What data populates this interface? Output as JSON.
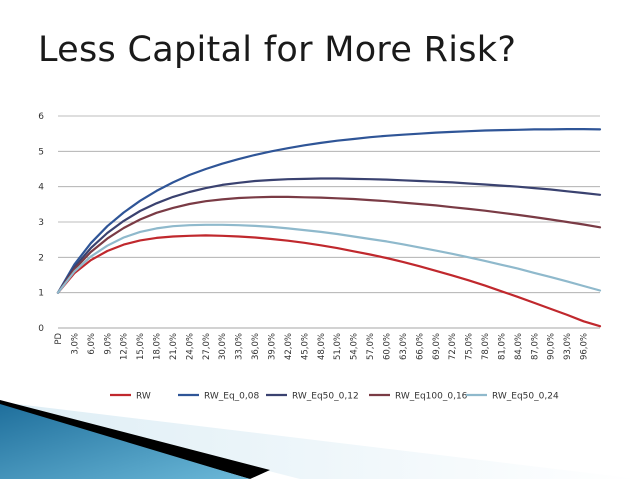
{
  "slide": {
    "title": "Less Capital for More Risk?"
  },
  "chart_data": {
    "type": "line",
    "title": "",
    "xlabel": "",
    "ylabel": "",
    "x_axis_first_label": "PD",
    "x": [
      0,
      3,
      6,
      9,
      12,
      15,
      18,
      21,
      24,
      27,
      30,
      33,
      36,
      39,
      42,
      45,
      48,
      51,
      54,
      57,
      60,
      63,
      66,
      69,
      72,
      75,
      78,
      81,
      84,
      87,
      90,
      93,
      96,
      99
    ],
    "x_tick_labels": [
      "PD",
      "3,0%",
      "6,0%",
      "9,0%",
      "12,0%",
      "15,0%",
      "18,0%",
      "21,0%",
      "24,0%",
      "27,0%",
      "30,0%",
      "33,0%",
      "36,0%",
      "39,0%",
      "42,0%",
      "45,0%",
      "48,0%",
      "51,0%",
      "54,0%",
      "57,0%",
      "60,0%",
      "63,0%",
      "66,0%",
      "69,0%",
      "72,0%",
      "75,0%",
      "78,0%",
      "81,0%",
      "84,0%",
      "87,0%",
      "90,0%",
      "93,0%",
      "96,0%"
    ],
    "ylim": [
      0,
      6
    ],
    "y_ticks": [
      "0",
      "1",
      "2",
      "3",
      "4",
      "5",
      "6"
    ],
    "grid": true,
    "legend_position": "bottom",
    "series": [
      {
        "name": "RW",
        "color": "#c0282d",
        "values": [
          1.0,
          1.55,
          1.92,
          2.18,
          2.36,
          2.48,
          2.55,
          2.59,
          2.61,
          2.62,
          2.61,
          2.59,
          2.56,
          2.52,
          2.47,
          2.41,
          2.34,
          2.26,
          2.17,
          2.08,
          1.98,
          1.87,
          1.75,
          1.62,
          1.49,
          1.35,
          1.2,
          1.04,
          0.88,
          0.71,
          0.54,
          0.37,
          0.19,
          0.05
        ]
      },
      {
        "name": "RW_Eq_0,08",
        "color": "#2f5597",
        "values": [
          1.0,
          1.8,
          2.4,
          2.88,
          3.27,
          3.6,
          3.88,
          4.12,
          4.33,
          4.5,
          4.65,
          4.78,
          4.9,
          5.0,
          5.09,
          5.17,
          5.24,
          5.3,
          5.35,
          5.4,
          5.44,
          5.47,
          5.5,
          5.53,
          5.55,
          5.57,
          5.59,
          5.6,
          5.61,
          5.62,
          5.62,
          5.63,
          5.63,
          5.62
        ]
      },
      {
        "name": "RW_Eq50_0,12",
        "color": "#3a4270",
        "values": [
          1.0,
          1.72,
          2.26,
          2.69,
          3.03,
          3.31,
          3.53,
          3.71,
          3.85,
          3.96,
          4.05,
          4.11,
          4.16,
          4.19,
          4.21,
          4.22,
          4.23,
          4.23,
          4.22,
          4.21,
          4.2,
          4.18,
          4.16,
          4.14,
          4.12,
          4.09,
          4.06,
          4.03,
          4.0,
          3.96,
          3.92,
          3.87,
          3.82,
          3.77
        ]
      },
      {
        "name": "RW_Eq100_0,16",
        "color": "#7a3b45",
        "values": [
          1.0,
          1.66,
          2.15,
          2.53,
          2.83,
          3.07,
          3.26,
          3.4,
          3.51,
          3.59,
          3.64,
          3.68,
          3.7,
          3.71,
          3.71,
          3.7,
          3.69,
          3.67,
          3.65,
          3.62,
          3.59,
          3.55,
          3.51,
          3.47,
          3.42,
          3.37,
          3.32,
          3.26,
          3.2,
          3.14,
          3.07,
          3.0,
          2.93,
          2.85
        ]
      },
      {
        "name": "RW_Eq50_0,24",
        "color": "#8fb9cc",
        "values": [
          1.0,
          1.6,
          2.02,
          2.33,
          2.56,
          2.72,
          2.82,
          2.88,
          2.91,
          2.92,
          2.92,
          2.91,
          2.89,
          2.86,
          2.82,
          2.77,
          2.72,
          2.66,
          2.59,
          2.52,
          2.45,
          2.37,
          2.28,
          2.19,
          2.1,
          2.0,
          1.9,
          1.79,
          1.68,
          1.56,
          1.44,
          1.32,
          1.19,
          1.06
        ]
      }
    ]
  }
}
